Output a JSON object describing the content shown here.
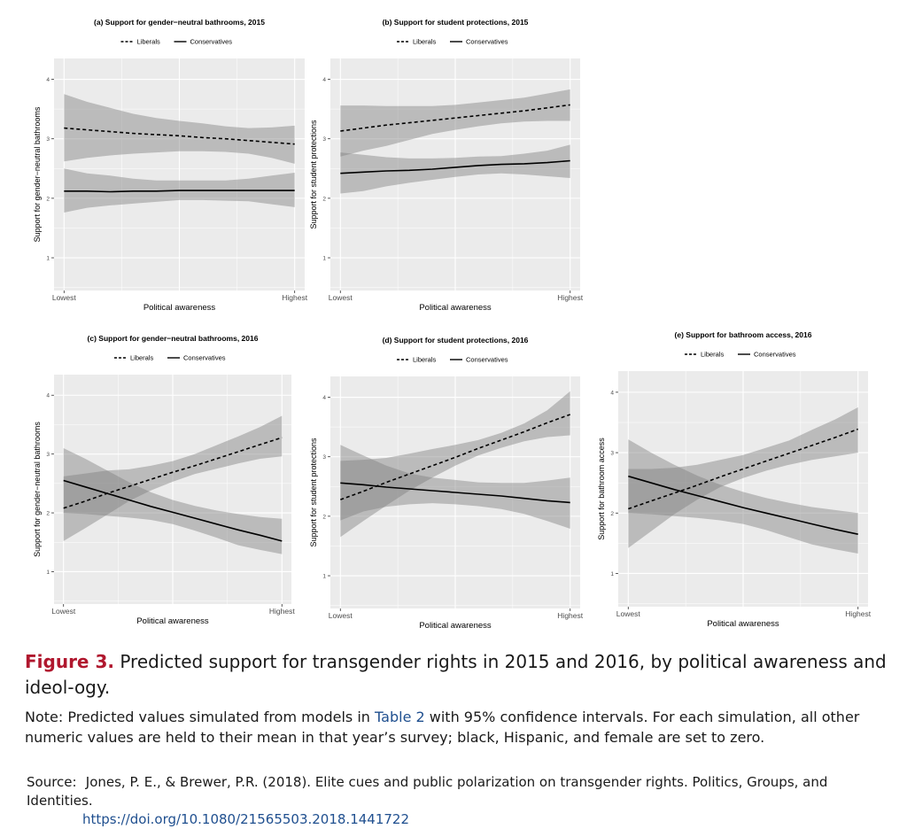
{
  "chart_data": [
    {
      "type": "line",
      "panel": "a",
      "title": "(a) Support for gender−neutral bathrooms, 2015",
      "xlabel": "Political awareness",
      "ylabel": "Support for gender−neutral bathrooms",
      "x_tick_labels": [
        "Lowest",
        "Highest"
      ],
      "ylim": [
        1,
        4
      ],
      "yticks": [
        "1",
        "2",
        "3",
        "4"
      ],
      "x": [
        0,
        1,
        2,
        3,
        4,
        5,
        6,
        7,
        8,
        9,
        10
      ],
      "grid": true,
      "legend": "top",
      "series": [
        {
          "name": "Liberals",
          "style": "dashed",
          "values": [
            3.18,
            3.15,
            3.12,
            3.09,
            3.07,
            3.05,
            3.02,
            3.0,
            2.97,
            2.94,
            2.91
          ],
          "lower": [
            2.62,
            2.68,
            2.72,
            2.75,
            2.77,
            2.79,
            2.79,
            2.78,
            2.75,
            2.68,
            2.58
          ],
          "upper": [
            3.75,
            3.62,
            3.52,
            3.42,
            3.35,
            3.3,
            3.26,
            3.21,
            3.18,
            3.19,
            3.22
          ]
        },
        {
          "name": "Conservatives",
          "style": "solid",
          "values": [
            2.12,
            2.12,
            2.11,
            2.12,
            2.12,
            2.13,
            2.13,
            2.13,
            2.13,
            2.13,
            2.13
          ],
          "lower": [
            1.76,
            1.84,
            1.88,
            1.91,
            1.94,
            1.97,
            1.97,
            1.96,
            1.95,
            1.9,
            1.85
          ],
          "upper": [
            2.5,
            2.42,
            2.38,
            2.33,
            2.3,
            2.3,
            2.3,
            2.3,
            2.33,
            2.38,
            2.43
          ]
        }
      ]
    },
    {
      "type": "line",
      "panel": "b",
      "title": "(b) Support for student protections, 2015",
      "xlabel": "Political awareness",
      "ylabel": "Support for student protections",
      "x_tick_labels": [
        "Lowest",
        "Highest"
      ],
      "ylim": [
        1,
        4
      ],
      "yticks": [
        "1",
        "2",
        "3",
        "4"
      ],
      "x": [
        0,
        1,
        2,
        3,
        4,
        5,
        6,
        7,
        8,
        9,
        10
      ],
      "grid": true,
      "legend": "top",
      "series": [
        {
          "name": "Liberals",
          "style": "dashed",
          "values": [
            3.13,
            3.18,
            3.23,
            3.27,
            3.31,
            3.35,
            3.39,
            3.43,
            3.47,
            3.52,
            3.57
          ],
          "lower": [
            2.7,
            2.8,
            2.88,
            2.98,
            3.08,
            3.15,
            3.21,
            3.26,
            3.29,
            3.3,
            3.3
          ],
          "upper": [
            3.56,
            3.56,
            3.55,
            3.55,
            3.55,
            3.57,
            3.61,
            3.65,
            3.69,
            3.76,
            3.83
          ]
        },
        {
          "name": "Conservatives",
          "style": "solid",
          "values": [
            2.42,
            2.44,
            2.46,
            2.47,
            2.49,
            2.52,
            2.55,
            2.57,
            2.58,
            2.6,
            2.63
          ]
        },
        {
          "name": "Conservatives CI",
          "style": "band",
          "lower": [
            2.08,
            2.12,
            2.2,
            2.26,
            2.31,
            2.36,
            2.4,
            2.42,
            2.4,
            2.37,
            2.34
          ],
          "upper": [
            2.77,
            2.73,
            2.69,
            2.67,
            2.67,
            2.68,
            2.7,
            2.71,
            2.75,
            2.8,
            2.9
          ]
        }
      ]
    },
    {
      "type": "line",
      "panel": "c",
      "title": "(c) Support for gender−neutral bathrooms, 2016",
      "xlabel": "Political awareness",
      "ylabel": "Support for gender−neutral bathrooms",
      "x_tick_labels": [
        "Lowest",
        "Highest"
      ],
      "ylim": [
        1,
        4
      ],
      "yticks": [
        "1",
        "2",
        "3",
        "4"
      ],
      "x": [
        0,
        1,
        2,
        3,
        4,
        5,
        6,
        7,
        8,
        9,
        10
      ],
      "grid": true,
      "legend": "top",
      "series": [
        {
          "name": "Liberals",
          "style": "dashed",
          "values": [
            2.08,
            2.2,
            2.33,
            2.45,
            2.57,
            2.69,
            2.8,
            2.92,
            3.04,
            3.16,
            3.28
          ],
          "lower": [
            1.52,
            1.74,
            1.97,
            2.2,
            2.38,
            2.53,
            2.66,
            2.75,
            2.84,
            2.92,
            2.96
          ],
          "upper": [
            2.62,
            2.67,
            2.72,
            2.74,
            2.8,
            2.88,
            3.0,
            3.15,
            3.3,
            3.46,
            3.65
          ]
        },
        {
          "name": "Conservatives",
          "style": "solid",
          "values": [
            2.55,
            2.44,
            2.33,
            2.22,
            2.11,
            2.01,
            1.91,
            1.81,
            1.71,
            1.62,
            1.52
          ]
        },
        {
          "name": "Conservatives CI",
          "style": "band",
          "lower": [
            2.0,
            1.98,
            1.95,
            1.92,
            1.88,
            1.81,
            1.7,
            1.58,
            1.45,
            1.37,
            1.3
          ],
          "upper": [
            3.1,
            2.92,
            2.72,
            2.52,
            2.35,
            2.22,
            2.12,
            2.04,
            1.98,
            1.93,
            1.9
          ]
        }
      ]
    },
    {
      "type": "line",
      "panel": "d",
      "title": "(d) Support for student protections, 2016",
      "xlabel": "Political awareness",
      "ylabel": "Support for student protections",
      "x_tick_labels": [
        "Lowest",
        "Highest"
      ],
      "ylim": [
        1,
        4
      ],
      "yticks": [
        "1",
        "2",
        "3",
        "4"
      ],
      "x": [
        0,
        1,
        2,
        3,
        4,
        5,
        6,
        7,
        8,
        9,
        10
      ],
      "grid": true,
      "legend": "top",
      "series": [
        {
          "name": "Liberals",
          "style": "dashed",
          "values": [
            2.28,
            2.42,
            2.57,
            2.71,
            2.85,
            2.99,
            3.14,
            3.28,
            3.42,
            3.57,
            3.71
          ],
          "lower": [
            1.65,
            1.92,
            2.18,
            2.43,
            2.65,
            2.85,
            3.02,
            3.15,
            3.26,
            3.33,
            3.36
          ],
          "upper": [
            2.93,
            2.95,
            2.98,
            3.05,
            3.13,
            3.2,
            3.28,
            3.4,
            3.56,
            3.78,
            4.1
          ]
        },
        {
          "name": "Conservatives",
          "style": "solid",
          "values": [
            2.56,
            2.53,
            2.49,
            2.46,
            2.43,
            2.4,
            2.37,
            2.34,
            2.3,
            2.26,
            2.23
          ],
          "lower": [
            1.93,
            2.08,
            2.16,
            2.2,
            2.22,
            2.2,
            2.17,
            2.12,
            2.04,
            1.92,
            1.79
          ],
          "upper": [
            3.2,
            3.02,
            2.85,
            2.72,
            2.65,
            2.61,
            2.57,
            2.56,
            2.56,
            2.6,
            2.65
          ]
        }
      ]
    },
    {
      "type": "line",
      "panel": "e",
      "title": "(e) Support for bathroom access, 2016",
      "xlabel": "Political awareness",
      "ylabel": "Support for bathroom access",
      "x_tick_labels": [
        "Lowest",
        "Highest"
      ],
      "ylim": [
        1,
        4
      ],
      "yticks": [
        "1",
        "2",
        "3",
        "4"
      ],
      "x": [
        0,
        1,
        2,
        3,
        4,
        5,
        6,
        7,
        8,
        9,
        10
      ],
      "grid": true,
      "legend": "top",
      "series": [
        {
          "name": "Liberals",
          "style": "dashed",
          "values": [
            2.07,
            2.2,
            2.33,
            2.46,
            2.6,
            2.73,
            2.86,
            2.99,
            3.12,
            3.25,
            3.39
          ],
          "lower": [
            1.42,
            1.7,
            1.98,
            2.22,
            2.43,
            2.58,
            2.7,
            2.8,
            2.88,
            2.94,
            3.0
          ],
          "upper": [
            2.73,
            2.73,
            2.75,
            2.8,
            2.88,
            2.96,
            3.08,
            3.2,
            3.38,
            3.55,
            3.75
          ]
        },
        {
          "name": "Conservatives",
          "style": "solid",
          "values": [
            2.61,
            2.5,
            2.39,
            2.29,
            2.19,
            2.09,
            2.0,
            1.91,
            1.82,
            1.73,
            1.65
          ],
          "lower": [
            2.0,
            1.98,
            1.95,
            1.92,
            1.88,
            1.82,
            1.72,
            1.6,
            1.48,
            1.4,
            1.33
          ],
          "upper": [
            3.22,
            3.0,
            2.8,
            2.62,
            2.47,
            2.35,
            2.25,
            2.17,
            2.1,
            2.05,
            2.0
          ]
        }
      ]
    }
  ],
  "caption": {
    "label": "Figure 3.",
    "text": "Predicted support for transgender rights in 2015 and 2016, by political awareness and ideol-ogy."
  },
  "note": {
    "before": "Note: Predicted values simulated from models in ",
    "table_ref": "Table 2",
    "after": " with 95% confidence intervals. For each simulation, all other numeric values are held to their mean in that year’s survey; black, Hispanic, and female are set to zero."
  },
  "source": {
    "label": "Source:",
    "text": "Jones, P. E., & Brewer, P.R. (2018). Elite cues and public polarization on transgender rights. Politics, Groups, and Identities.",
    "doi": "https://doi.org/10.1080/21565503.2018.1441722"
  },
  "colors": {
    "panel_bg": "#ebebeb",
    "grid": "#ffffff",
    "ci_band": "#808080",
    "line": "#000000",
    "caption_label": "#b0172e",
    "link": "#1f4f8f"
  }
}
